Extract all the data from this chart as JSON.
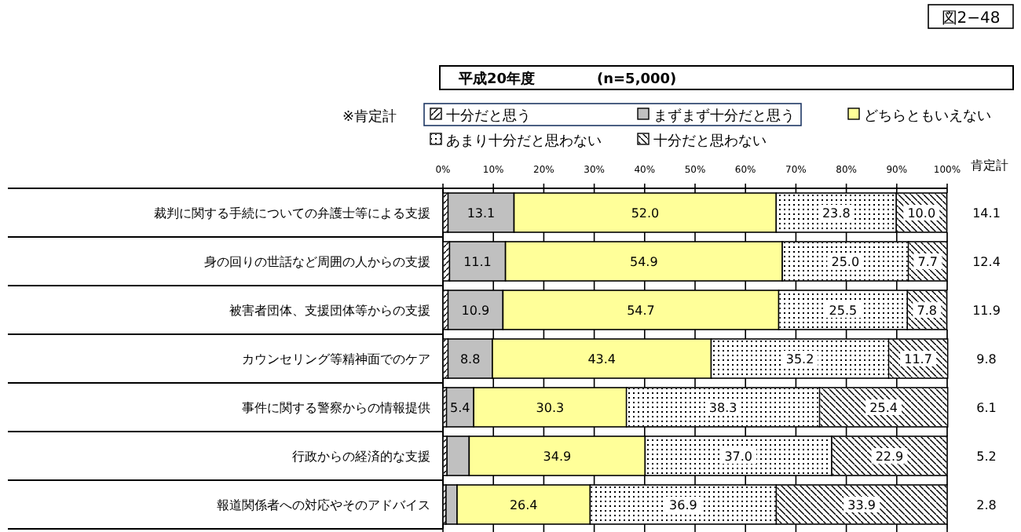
{
  "chart_data": {
    "type": "bar",
    "orientation": "horizontal",
    "stacked": true,
    "title": "平成20年度",
    "subtitle": "(n=5,000)",
    "legend_title": "※肯定計",
    "legend": "top",
    "categories": [
      "裁判に関する手続についての弁護士等による支援",
      "身の回りの世話など周囲の人からの支援",
      "被害者団体、支援団体等からの支援",
      "カウンセリング等精神面でのケア",
      "事件に関する警察からの情報提供",
      "行政からの経済的な支援",
      "報道関係者への対応やそのアドバイス"
    ],
    "series": [
      {
        "name": "十分だと思う",
        "color": "#ffffff",
        "values": [
          1.0,
          1.3,
          1.0,
          1.0,
          0.7,
          0.8,
          0.6
        ],
        "value_labels": [
          null,
          null,
          null,
          null,
          null,
          null,
          null
        ]
      },
      {
        "name": "まずまず十分だと思う",
        "color": "#c0c0c0",
        "values": [
          13.1,
          11.1,
          10.9,
          8.8,
          5.4,
          4.4,
          2.2
        ],
        "value_labels": [
          "13.1",
          "11.1",
          "10.9",
          "8.8",
          "5.4",
          null,
          null
        ]
      },
      {
        "name": "どちらともいえない",
        "color": "#ffff99",
        "values": [
          52.0,
          54.9,
          54.7,
          43.4,
          30.3,
          34.9,
          26.4
        ],
        "value_labels": [
          "52.0",
          "54.9",
          "54.7",
          "43.4",
          "30.3",
          "34.9",
          "26.4"
        ]
      },
      {
        "name": "あまり十分だと思わない",
        "color": "#ffffff",
        "values": [
          23.8,
          25.0,
          25.5,
          35.2,
          38.3,
          37.0,
          36.9
        ],
        "value_labels": [
          "23.8",
          "25.0",
          "25.5",
          "35.2",
          "38.3",
          "37.0",
          "36.9"
        ]
      },
      {
        "name": "十分だと思わない",
        "color": "#ffffff",
        "values": [
          10.0,
          7.7,
          7.8,
          11.7,
          25.4,
          22.9,
          33.9
        ],
        "value_labels": [
          "10.0",
          "7.7",
          "7.8",
          "11.7",
          "25.4",
          "22.9",
          "33.9"
        ]
      }
    ],
    "xlim": [
      0,
      100
    ],
    "xticks": [
      {
        "value": 0,
        "label": "0%"
      },
      {
        "value": 10,
        "label": "10%"
      },
      {
        "value": 20,
        "label": "20%"
      },
      {
        "value": 30,
        "label": "30%"
      },
      {
        "value": 40,
        "label": "40%"
      },
      {
        "value": 50,
        "label": "50%"
      },
      {
        "value": 60,
        "label": "60%"
      },
      {
        "value": 70,
        "label": "70%"
      },
      {
        "value": 80,
        "label": "80%"
      },
      {
        "value": 90,
        "label": "90%"
      },
      {
        "value": 100,
        "label": "100%"
      }
    ],
    "annotations": [
      "図2−48",
      "肯定計",
      "14.1",
      "12.4",
      "11.9",
      "9.8",
      "6.1",
      "5.2",
      "2.8"
    ]
  }
}
